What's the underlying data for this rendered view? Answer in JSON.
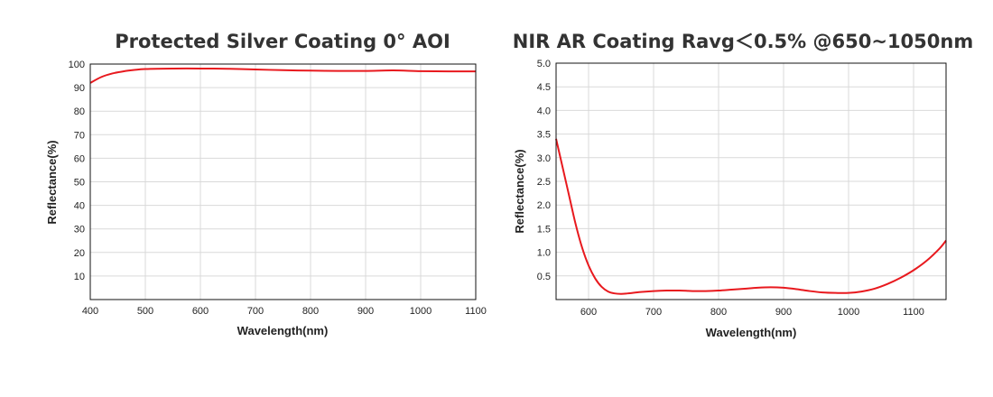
{
  "chart_data": [
    {
      "type": "line",
      "title": "Protected Silver Coating 0° AOI",
      "xlabel": "Wavelength(nm)",
      "ylabel": "Reflectance(%)",
      "xlim": [
        400,
        1100
      ],
      "ylim": [
        0,
        100
      ],
      "xticks": [
        "400",
        "500",
        "600",
        "700",
        "800",
        "900",
        "1000",
        "1100"
      ],
      "yticks": [
        "10",
        "20",
        "30",
        "40",
        "50",
        "60",
        "70",
        "80",
        "90",
        "100"
      ],
      "grid": true,
      "line_color": "#e8191e",
      "series": [
        {
          "x": [
            400,
            420,
            440,
            460,
            480,
            500,
            550,
            600,
            650,
            700,
            750,
            800,
            850,
            900,
            950,
            1000,
            1050,
            1100
          ],
          "y": [
            92.0,
            94.5,
            96.0,
            96.9,
            97.5,
            97.9,
            98.1,
            98.1,
            98.0,
            97.7,
            97.4,
            97.2,
            97.1,
            97.1,
            97.3,
            97.0,
            96.9,
            96.9
          ]
        }
      ]
    },
    {
      "type": "line",
      "title": "NIR AR Coating Ravg＜0.5% @650~1050nm",
      "xlabel": "Wavelength(nm)",
      "ylabel": "Reflectance(%)",
      "xlim": [
        550,
        1150
      ],
      "ylim": [
        0,
        5.0
      ],
      "xticks": [
        "600",
        "700",
        "800",
        "900",
        "1000",
        "1100"
      ],
      "yticks": [
        "0.5",
        "1.0",
        "1.5",
        "2.0",
        "2.5",
        "3.0",
        "3.5",
        "4.0",
        "4.5",
        "5.0"
      ],
      "grid": true,
      "line_color": "#e8191e",
      "series": [
        {
          "x": [
            550,
            560,
            570,
            580,
            590,
            600,
            610,
            620,
            630,
            640,
            650,
            660,
            680,
            700,
            720,
            740,
            760,
            780,
            800,
            820,
            840,
            860,
            880,
            900,
            920,
            940,
            960,
            980,
            1000,
            1020,
            1040,
            1060,
            1080,
            1100,
            1120,
            1140,
            1150
          ],
          "y": [
            3.4,
            2.8,
            2.2,
            1.6,
            1.1,
            0.72,
            0.45,
            0.27,
            0.17,
            0.13,
            0.12,
            0.13,
            0.16,
            0.18,
            0.19,
            0.19,
            0.18,
            0.18,
            0.19,
            0.21,
            0.23,
            0.25,
            0.26,
            0.25,
            0.22,
            0.18,
            0.15,
            0.14,
            0.14,
            0.17,
            0.23,
            0.33,
            0.46,
            0.62,
            0.82,
            1.08,
            1.25
          ]
        }
      ]
    }
  ]
}
